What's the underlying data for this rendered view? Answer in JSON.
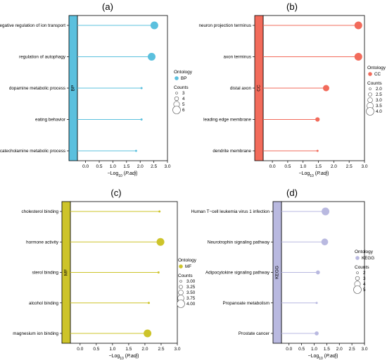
{
  "chart_data": [
    {
      "type": "lollipop",
      "panel_label": "(a)",
      "strip_label": "BP",
      "color": "#5bc0de",
      "xlabel": "−Log10 (P.adj)",
      "xlim": [
        -0.3,
        3.0
      ],
      "xticks": [
        "0.0",
        "0.5",
        "1.0",
        "1.5",
        "2.0",
        "2.5",
        "3.0"
      ],
      "categories": [
        "negative regulation of ion transport",
        "regulation of autophagy",
        "dopamine metabolic process",
        "eating behavior",
        "catecholamine metabolic process"
      ],
      "values": [
        2.52,
        2.42,
        2.05,
        2.05,
        1.85
      ],
      "counts": [
        6,
        6,
        3,
        3,
        3
      ],
      "legend": {
        "ontology_title": "Ontology",
        "ontology_label": "BP",
        "counts_title": "Counts",
        "counts_labels": [
          "3",
          "4",
          "5",
          "6"
        ],
        "counts_values": [
          3,
          4,
          5,
          6
        ]
      }
    },
    {
      "type": "lollipop",
      "panel_label": "(b)",
      "strip_label": "CC",
      "color": "#f26b5b",
      "xlabel": "−Log10 (P.adj)",
      "xlim": [
        -0.3,
        3.0
      ],
      "xticks": [
        "0.0",
        "0.5",
        "1.0",
        "1.5",
        "2.0",
        "2.5",
        "3.0"
      ],
      "categories": [
        "neuron projection terminus",
        "axon terminus",
        "distal axon",
        "leading edge membrane",
        "dendrite membrane"
      ],
      "values": [
        2.8,
        2.8,
        1.75,
        1.47,
        1.47
      ],
      "counts": [
        4,
        4,
        3.5,
        2.8,
        2
      ],
      "legend": {
        "ontology_title": "Ontology",
        "ontology_label": "CC",
        "counts_title": "Counts",
        "counts_labels": [
          "2.0",
          "2.5",
          "3.0",
          "3.5",
          "4.0"
        ],
        "counts_values": [
          2.0,
          2.5,
          3.0,
          3.5,
          4.0
        ]
      }
    },
    {
      "type": "lollipop",
      "panel_label": "(c)",
      "strip_label": "MF",
      "color": "#cdc42a",
      "xlabel": "−Log10 (P.adj)",
      "xlim": [
        -0.3,
        3.0
      ],
      "xticks": [
        "0.0",
        "0.5",
        "1.0",
        "1.5",
        "2.0",
        "2.5",
        "3.0"
      ],
      "categories": [
        "cholesterol binding",
        "hormone activity",
        "sterol binding",
        "alcohol binding",
        "magnesium ion binding"
      ],
      "values": [
        2.45,
        2.48,
        2.42,
        2.12,
        2.08
      ],
      "counts": [
        3,
        4,
        3,
        3,
        4
      ],
      "legend": {
        "ontology_title": "Ontology",
        "ontology_label": "MF",
        "counts_title": "Counts",
        "counts_labels": [
          "3.00",
          "3.25",
          "3.50",
          "3.75",
          "4.00"
        ],
        "counts_values": [
          3.0,
          3.25,
          3.5,
          3.75,
          4.0
        ]
      }
    },
    {
      "type": "lollipop",
      "panel_label": "(d)",
      "strip_label": "KEGG",
      "color": "#b9b9e0",
      "xlabel": "−Log10 (P.adj)",
      "xlim": [
        -0.3,
        3.0
      ],
      "xticks": [
        "0.0",
        "0.5",
        "1.0",
        "1.5",
        "2.0",
        "2.5",
        "3.0"
      ],
      "categories": [
        "Human T−cell leukemia virus 1 infection",
        "Neurotrophin signaling pathway",
        "Adipocytokine signaling pathway",
        "Propanoate metabolism",
        "Prostate cancer"
      ],
      "values": [
        1.45,
        1.42,
        1.15,
        1.1,
        1.1
      ],
      "counts": [
        5,
        4.5,
        3,
        2,
        3
      ],
      "legend": {
        "ontology_title": "Ontology",
        "ontology_label": "KEGG",
        "counts_title": "Counts",
        "counts_labels": [
          "2",
          "3",
          "4",
          "5"
        ],
        "counts_values": [
          2,
          3,
          4,
          5
        ]
      }
    }
  ]
}
